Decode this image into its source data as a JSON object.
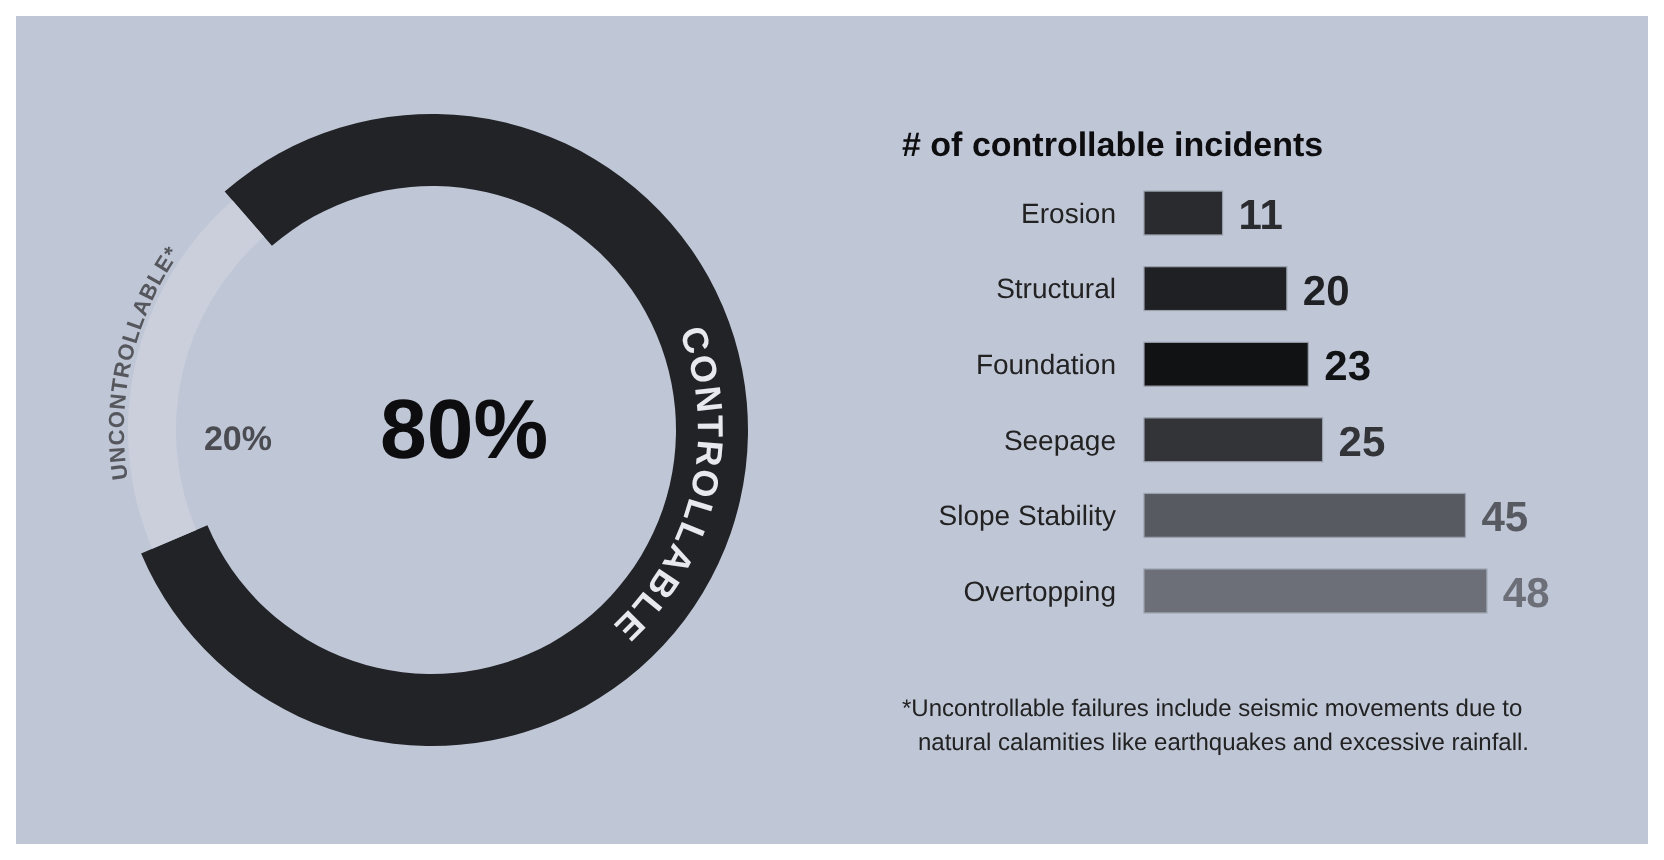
{
  "chart_data": [
    {
      "type": "donut",
      "categories": [
        "CONTROLLABLE",
        "UNCONTROLLABLE*"
      ],
      "values": [
        80,
        20
      ],
      "colors": [
        "#222327",
        "#cacfdb"
      ],
      "value_labels": [
        "80%",
        "20%"
      ]
    },
    {
      "type": "bar",
      "orientation": "horizontal",
      "title": "# of controllable incidents",
      "categories": [
        "Erosion",
        "Structural",
        "Foundation",
        "Seepage",
        "Slope Stability",
        "Overtopping"
      ],
      "values": [
        11,
        20,
        23,
        25,
        45,
        48
      ],
      "colors": [
        "#2a2b2f",
        "#1f2023",
        "#111214",
        "#323438",
        "#575a61",
        "#6c6f77"
      ],
      "data_labels": true,
      "annotations": [
        "*Uncontrollable failures include seismic movements due to natural calamities like earthquakes and excessive rainfall."
      ]
    }
  ]
}
